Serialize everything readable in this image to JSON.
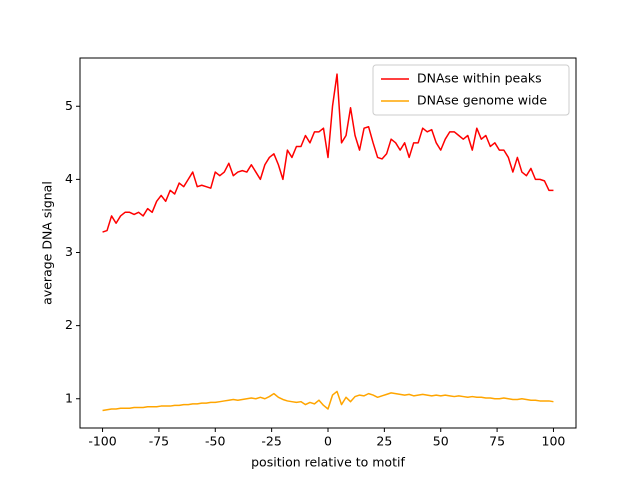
{
  "chart_data": {
    "type": "line",
    "xlabel": "position relative to motif",
    "ylabel": "average DNA signal",
    "x": [
      -100,
      -98,
      -96,
      -94,
      -92,
      -90,
      -88,
      -86,
      -84,
      -82,
      -80,
      -78,
      -76,
      -74,
      -72,
      -70,
      -68,
      -66,
      -64,
      -62,
      -60,
      -58,
      -56,
      -54,
      -52,
      -50,
      -48,
      -46,
      -44,
      -42,
      -40,
      -38,
      -36,
      -34,
      -32,
      -30,
      -28,
      -26,
      -24,
      -22,
      -20,
      -18,
      -16,
      -14,
      -12,
      -10,
      -8,
      -6,
      -4,
      -2,
      0,
      2,
      4,
      6,
      8,
      10,
      12,
      14,
      16,
      18,
      20,
      22,
      24,
      26,
      28,
      30,
      32,
      34,
      36,
      38,
      40,
      42,
      44,
      46,
      48,
      50,
      52,
      54,
      56,
      58,
      60,
      62,
      64,
      66,
      68,
      70,
      72,
      74,
      76,
      78,
      80,
      82,
      84,
      86,
      88,
      90,
      92,
      94,
      96,
      98,
      100
    ],
    "series": [
      {
        "name": "DNAse within peaks",
        "color": "#ff0000",
        "values": [
          3.28,
          3.3,
          3.5,
          3.4,
          3.5,
          3.55,
          3.55,
          3.52,
          3.55,
          3.5,
          3.6,
          3.55,
          3.7,
          3.78,
          3.7,
          3.85,
          3.8,
          3.95,
          3.9,
          4.0,
          4.1,
          3.9,
          3.92,
          3.9,
          3.88,
          4.1,
          4.05,
          4.1,
          4.22,
          4.05,
          4.1,
          4.12,
          4.1,
          4.2,
          4.1,
          4.0,
          4.2,
          4.3,
          4.35,
          4.2,
          4.0,
          4.4,
          4.3,
          4.45,
          4.45,
          4.6,
          4.5,
          4.65,
          4.65,
          4.7,
          4.3,
          5.0,
          5.44,
          4.5,
          4.6,
          4.98,
          4.6,
          4.4,
          4.7,
          4.72,
          4.5,
          4.3,
          4.28,
          4.35,
          4.55,
          4.5,
          4.4,
          4.5,
          4.3,
          4.5,
          4.5,
          4.7,
          4.65,
          4.68,
          4.5,
          4.4,
          4.55,
          4.65,
          4.65,
          4.6,
          4.55,
          4.6,
          4.4,
          4.7,
          4.55,
          4.6,
          4.45,
          4.5,
          4.4,
          4.4,
          4.3,
          4.1,
          4.3,
          4.1,
          4.05,
          4.15,
          4.0,
          4.0,
          3.98,
          3.85,
          3.85
        ]
      },
      {
        "name": "DNAse genome wide",
        "color": "#ffa500",
        "values": [
          0.84,
          0.85,
          0.86,
          0.86,
          0.87,
          0.87,
          0.87,
          0.88,
          0.88,
          0.88,
          0.89,
          0.89,
          0.89,
          0.9,
          0.9,
          0.9,
          0.91,
          0.91,
          0.92,
          0.92,
          0.93,
          0.93,
          0.94,
          0.94,
          0.95,
          0.95,
          0.96,
          0.97,
          0.98,
          0.99,
          0.98,
          0.99,
          1.0,
          1.01,
          1.0,
          1.02,
          1.0,
          1.03,
          1.07,
          1.02,
          0.99,
          0.97,
          0.96,
          0.95,
          0.96,
          0.92,
          0.95,
          0.93,
          0.98,
          0.91,
          0.86,
          1.05,
          1.1,
          0.92,
          1.02,
          0.96,
          1.03,
          1.05,
          1.04,
          1.07,
          1.05,
          1.02,
          1.04,
          1.06,
          1.08,
          1.07,
          1.06,
          1.05,
          1.06,
          1.04,
          1.05,
          1.06,
          1.05,
          1.04,
          1.05,
          1.04,
          1.05,
          1.04,
          1.03,
          1.04,
          1.03,
          1.02,
          1.03,
          1.02,
          1.02,
          1.01,
          1.01,
          1.0,
          1.0,
          1.01,
          1.0,
          0.99,
          0.99,
          1.0,
          0.99,
          0.98,
          0.98,
          0.97,
          0.97,
          0.97,
          0.96
        ]
      }
    ],
    "xlim": [
      -110,
      110
    ],
    "xticks": [
      -100,
      -75,
      -50,
      -25,
      0,
      25,
      50,
      75,
      100
    ],
    "ylim": [
      0.6,
      5.66
    ],
    "yticks": [
      1,
      2,
      3,
      4,
      5
    ],
    "grid": false,
    "legend": "upper right"
  }
}
